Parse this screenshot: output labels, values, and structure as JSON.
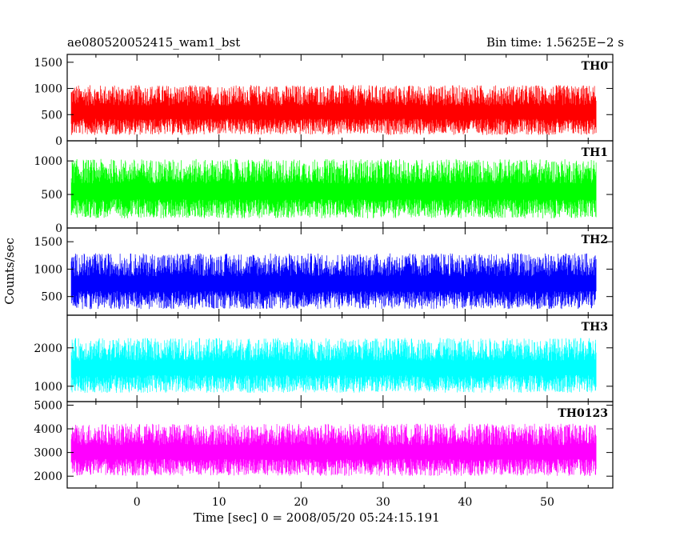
{
  "header": {
    "title": "ae080520052415_wam1_bst",
    "bin_time": "Bin time: 1.5625E−2 s"
  },
  "chart_data": {
    "type": "line",
    "xlabel": "Time [sec] 0 = 2008/05/20 05:24:15.191",
    "ylabel": "Counts/sec",
    "xlim": [
      -8.5,
      58
    ],
    "x_ticks": [
      0,
      10,
      20,
      30,
      40,
      50
    ],
    "x_range_data": [
      -8,
      56
    ],
    "panels": [
      {
        "name": "TH0",
        "color": "#ff0000",
        "ylim": [
          0,
          1650
        ],
        "yticks": [
          0,
          500,
          1000,
          1500
        ],
        "mean": 560,
        "spread": 280,
        "min": 50,
        "max": 1650
      },
      {
        "name": "TH1",
        "color": "#00ff00",
        "ylim": [
          0,
          1300
        ],
        "yticks": [
          0,
          500,
          1000
        ],
        "mean": 560,
        "spread": 260,
        "min": 60,
        "max": 1300
      },
      {
        "name": "TH2",
        "color": "#0000ff",
        "ylim": [
          160,
          1750
        ],
        "yticks": [
          500,
          1000,
          1500
        ],
        "mean": 750,
        "spread": 300,
        "min": 160,
        "max": 1750
      },
      {
        "name": "TH3",
        "color": "#00ffff",
        "ylim": [
          600,
          2850
        ],
        "yticks": [
          1000,
          2000
        ],
        "mean": 1500,
        "spread": 420,
        "min": 600,
        "max": 2850
      },
      {
        "name": "TH0123",
        "color": "#ff00ff",
        "ylim": [
          1500,
          5150
        ],
        "yticks": [
          2000,
          3000,
          4000,
          5000
        ],
        "mean": 3050,
        "spread": 650,
        "min": 1500,
        "max": 5150
      }
    ]
  }
}
